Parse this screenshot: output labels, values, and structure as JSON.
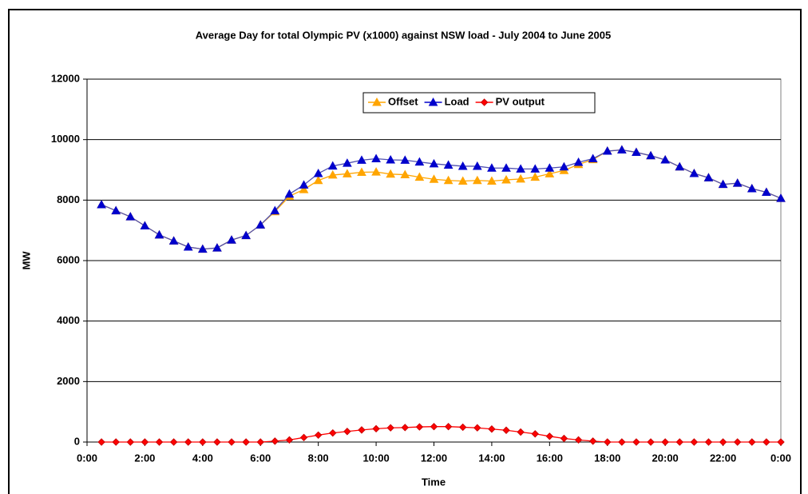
{
  "chart_data": {
    "type": "line",
    "title": "Average Day for total Olympic PV (x1000) against NSW load - July 2004 to June 2005",
    "x_label": "Time",
    "y_label": "MW",
    "x": [
      0.5,
      1,
      1.5,
      2,
      2.5,
      3,
      3.5,
      4,
      4.5,
      5,
      5.5,
      6,
      6.5,
      7,
      7.5,
      8,
      8.5,
      9,
      9.5,
      10,
      10.5,
      11,
      11.5,
      12,
      12.5,
      13,
      13.5,
      14,
      14.5,
      15,
      15.5,
      16,
      16.5,
      17,
      17.5,
      18,
      18.5,
      19,
      19.5,
      20,
      20.5,
      21,
      21.5,
      22,
      22.5,
      23,
      23.5,
      24
    ],
    "series": [
      {
        "name": "Offset",
        "color": "#ffa500",
        "marker": "triangle",
        "values": [
          7850,
          7650,
          7450,
          7150,
          6850,
          6650,
          6450,
          6380,
          6420,
          6680,
          6830,
          7180,
          7620,
          8130,
          8350,
          8650,
          8830,
          8870,
          8920,
          8930,
          8860,
          8840,
          8760,
          8690,
          8650,
          8630,
          8650,
          8630,
          8670,
          8700,
          8760,
          8870,
          8980,
          9180,
          9340,
          9620,
          9660,
          9580,
          9470,
          9330,
          9100,
          8880,
          8740,
          8520,
          8560,
          8380,
          8260,
          8060
        ]
      },
      {
        "name": "Load",
        "color": "#0000cc",
        "marker": "triangle",
        "values": [
          7850,
          7650,
          7450,
          7150,
          6850,
          6650,
          6450,
          6380,
          6420,
          6680,
          6830,
          7180,
          7650,
          8200,
          8500,
          8880,
          9130,
          9220,
          9320,
          9370,
          9330,
          9320,
          9260,
          9200,
          9160,
          9120,
          9120,
          9060,
          9060,
          9030,
          9030,
          9060,
          9100,
          9250,
          9370,
          9620,
          9660,
          9580,
          9470,
          9330,
          9100,
          8880,
          8740,
          8520,
          8560,
          8380,
          8260,
          8060
        ]
      },
      {
        "name": "PV output",
        "color": "#ff0000",
        "marker": "diamond",
        "values": [
          0,
          0,
          0,
          0,
          0,
          0,
          0,
          0,
          0,
          0,
          0,
          0,
          30,
          70,
          150,
          230,
          300,
          350,
          400,
          440,
          470,
          480,
          500,
          510,
          510,
          490,
          470,
          430,
          390,
          330,
          270,
          190,
          120,
          70,
          30,
          0,
          0,
          0,
          0,
          0,
          0,
          0,
          0,
          0,
          0,
          0,
          0,
          0
        ]
      }
    ],
    "xlim": [
      0,
      24
    ],
    "xticks": [
      {
        "value": 0,
        "label": "0:00"
      },
      {
        "value": 2,
        "label": "2:00"
      },
      {
        "value": 4,
        "label": "4:00"
      },
      {
        "value": 6,
        "label": "6:00"
      },
      {
        "value": 8,
        "label": "8:00"
      },
      {
        "value": 10,
        "label": "10:00"
      },
      {
        "value": 12,
        "label": "12:00"
      },
      {
        "value": 14,
        "label": "14:00"
      },
      {
        "value": 16,
        "label": "16:00"
      },
      {
        "value": 18,
        "label": "18:00"
      },
      {
        "value": 20,
        "label": "20:00"
      },
      {
        "value": 22,
        "label": "22:00"
      },
      {
        "value": 24,
        "label": "0:00"
      }
    ],
    "ylim": [
      0,
      12000
    ],
    "yticks": [
      0,
      2000,
      4000,
      6000,
      8000,
      10000,
      12000
    ],
    "grid": true,
    "legend": "top"
  }
}
